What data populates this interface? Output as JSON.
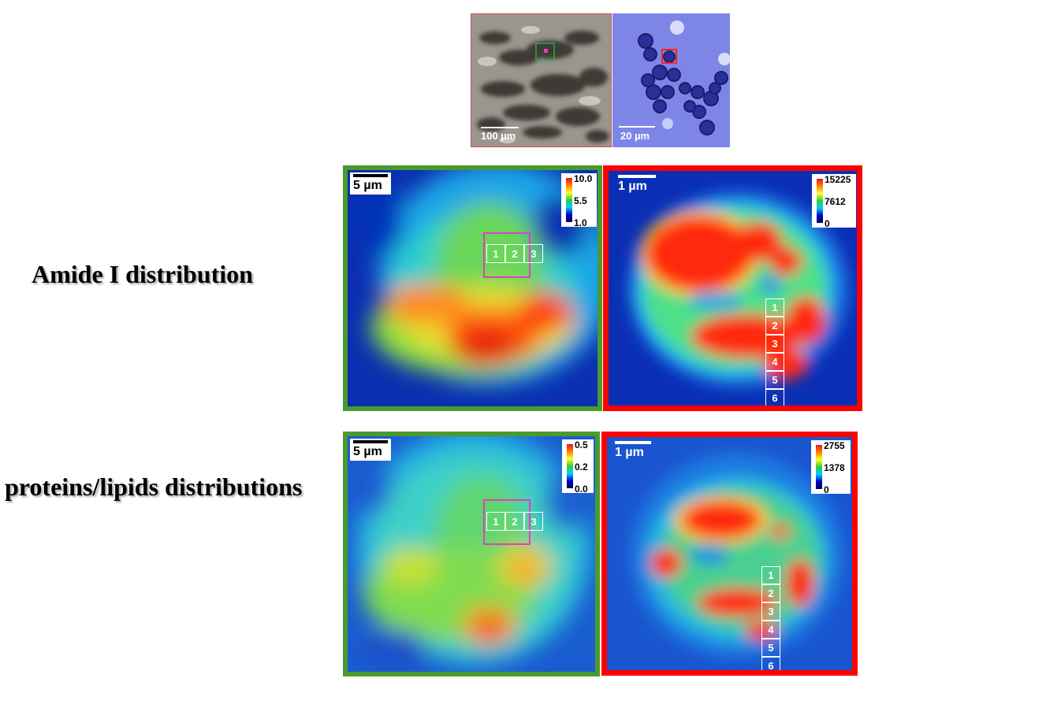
{
  "rows": [
    {
      "label": "Amide I distribution"
    },
    {
      "label": "proteins/lipids distributions"
    }
  ],
  "micrographs": [
    {
      "scale_label": "100 µm"
    },
    {
      "scale_label": "20 µm"
    }
  ],
  "panels": [
    {
      "scale_label": "5 µm",
      "colorbar": {
        "max": "10.0",
        "mid": "5.5",
        "min": "1.0"
      },
      "cells": [
        "1",
        "2",
        "3"
      ],
      "frame_color": "#4a9a2e"
    },
    {
      "scale_label": "1 µm",
      "colorbar": {
        "max": "15225",
        "mid": "7612",
        "min": "0"
      },
      "cells": [
        "1",
        "2",
        "3",
        "4",
        "5",
        "6"
      ],
      "frame_color": "#ff0000"
    },
    {
      "scale_label": "5 µm",
      "colorbar": {
        "max": "0.5",
        "mid": "0.2",
        "min": "0.0"
      },
      "cells": [
        "1",
        "2",
        "3"
      ],
      "frame_color": "#4a9a2e"
    },
    {
      "scale_label": "1 µm",
      "colorbar": {
        "max": "2755",
        "mid": "1378",
        "min": "0"
      },
      "cells": [
        "1",
        "2",
        "3",
        "4",
        "5",
        "6"
      ],
      "frame_color": "#ff0000"
    }
  ]
}
